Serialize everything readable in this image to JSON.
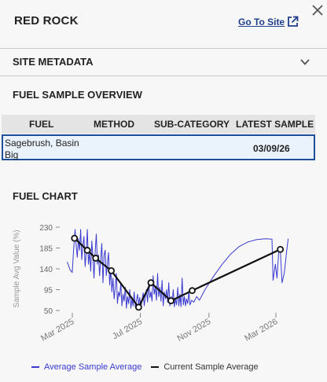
{
  "header": {
    "site_name": "RED ROCK",
    "goto_label": "Go To Site",
    "goto_icon": "external-link-icon",
    "close_icon": "close-icon"
  },
  "metadata": {
    "label": "SITE METADATA",
    "chevron_icon": "chevron-down-icon"
  },
  "overview": {
    "title": "FUEL SAMPLE OVERVIEW",
    "columns": [
      "FUEL",
      "METHOD",
      "SUB-CATEGORY",
      "LATEST SAMPLE"
    ],
    "rows": [
      {
        "fuel": "Sagebrush, Basin Big",
        "method": "",
        "sub_category": "",
        "latest_sample": "03/09/26"
      }
    ]
  },
  "chart": {
    "title": "FUEL CHART"
  },
  "chart_data": {
    "type": "line",
    "ylabel": "Sample Avg Value (%)",
    "xlabel": "",
    "ylim": [
      50,
      230
    ],
    "yticks": [
      50,
      95,
      140,
      185,
      230
    ],
    "xticks": [
      "Mar 2025",
      "Jul 2025",
      "Nov 2025",
      "Mar 2026"
    ],
    "x_tick_dates": [
      "2025-03-01",
      "2025-07-01",
      "2025-11-01",
      "2026-03-01"
    ],
    "xlim": [
      "2025-02-15",
      "2026-03-25"
    ],
    "grid": false,
    "legend_position": "bottom",
    "series": [
      {
        "name": "Average Sample Average",
        "color": "#3a3ad0",
        "style": "thin-line",
        "points": [
          [
            "2025-02-20",
            155
          ],
          [
            "2025-02-25",
            138
          ],
          [
            "2025-03-01",
            132
          ],
          [
            "2025-03-03",
            175
          ],
          [
            "2025-03-06",
            225
          ],
          [
            "2025-03-08",
            190
          ],
          [
            "2025-03-10",
            165
          ],
          [
            "2025-03-12",
            205
          ],
          [
            "2025-03-14",
            180
          ],
          [
            "2025-03-16",
            225
          ],
          [
            "2025-03-18",
            160
          ],
          [
            "2025-03-20",
            190
          ],
          [
            "2025-03-22",
            210
          ],
          [
            "2025-03-24",
            145
          ],
          [
            "2025-03-26",
            175
          ],
          [
            "2025-03-28",
            225
          ],
          [
            "2025-03-30",
            150
          ],
          [
            "2025-04-01",
            175
          ],
          [
            "2025-04-03",
            135
          ],
          [
            "2025-04-05",
            200
          ],
          [
            "2025-04-07",
            165
          ],
          [
            "2025-04-09",
            120
          ],
          [
            "2025-04-11",
            175
          ],
          [
            "2025-04-13",
            215
          ],
          [
            "2025-04-15",
            150
          ],
          [
            "2025-04-17",
            170
          ],
          [
            "2025-04-19",
            125
          ],
          [
            "2025-04-21",
            160
          ],
          [
            "2025-04-23",
            195
          ],
          [
            "2025-04-25",
            110
          ],
          [
            "2025-04-27",
            170
          ],
          [
            "2025-04-29",
            180
          ],
          [
            "2025-05-01",
            125
          ],
          [
            "2025-05-03",
            150
          ],
          [
            "2025-05-05",
            175
          ],
          [
            "2025-05-07",
            105
          ],
          [
            "2025-05-09",
            140
          ],
          [
            "2025-05-11",
            90
          ],
          [
            "2025-05-13",
            120
          ],
          [
            "2025-05-15",
            75
          ],
          [
            "2025-05-17",
            100
          ],
          [
            "2025-05-19",
            130
          ],
          [
            "2025-05-21",
            65
          ],
          [
            "2025-05-23",
            90
          ],
          [
            "2025-05-25",
            80
          ],
          [
            "2025-05-27",
            110
          ],
          [
            "2025-05-29",
            60
          ],
          [
            "2025-05-31",
            85
          ],
          [
            "2025-06-02",
            70
          ],
          [
            "2025-06-04",
            100
          ],
          [
            "2025-06-06",
            55
          ],
          [
            "2025-06-08",
            80
          ],
          [
            "2025-06-10",
            65
          ],
          [
            "2025-06-12",
            95
          ],
          [
            "2025-06-14",
            55
          ],
          [
            "2025-06-16",
            75
          ],
          [
            "2025-06-18",
            60
          ],
          [
            "2025-06-20",
            90
          ],
          [
            "2025-06-22",
            58
          ],
          [
            "2025-06-24",
            70
          ],
          [
            "2025-06-26",
            85
          ],
          [
            "2025-06-28",
            62
          ],
          [
            "2025-06-30",
            78
          ],
          [
            "2025-07-02",
            55
          ],
          [
            "2025-07-04",
            72
          ],
          [
            "2025-07-06",
            88
          ],
          [
            "2025-07-08",
            60
          ],
          [
            "2025-07-10",
            80
          ],
          [
            "2025-07-12",
            95
          ],
          [
            "2025-07-14",
            68
          ],
          [
            "2025-07-16",
            110
          ],
          [
            "2025-07-18",
            78
          ],
          [
            "2025-07-20",
            90
          ],
          [
            "2025-07-22",
            70
          ],
          [
            "2025-07-24",
            125
          ],
          [
            "2025-07-26",
            85
          ],
          [
            "2025-07-28",
            100
          ],
          [
            "2025-07-30",
            72
          ],
          [
            "2025-08-01",
            130
          ],
          [
            "2025-08-03",
            80
          ],
          [
            "2025-08-05",
            100
          ],
          [
            "2025-08-07",
            70
          ],
          [
            "2025-08-09",
            115
          ],
          [
            "2025-08-11",
            60
          ],
          [
            "2025-08-13",
            90
          ],
          [
            "2025-08-15",
            75
          ],
          [
            "2025-08-17",
            95
          ],
          [
            "2025-08-19",
            68
          ],
          [
            "2025-08-21",
            110
          ],
          [
            "2025-08-23",
            60
          ],
          [
            "2025-08-25",
            80
          ],
          [
            "2025-08-27",
            65
          ],
          [
            "2025-08-29",
            95
          ],
          [
            "2025-08-31",
            58
          ],
          [
            "2025-09-02",
            75
          ],
          [
            "2025-09-04",
            62
          ],
          [
            "2025-09-06",
            100
          ],
          [
            "2025-09-08",
            60
          ],
          [
            "2025-09-10",
            85
          ],
          [
            "2025-09-12",
            58
          ],
          [
            "2025-09-14",
            120
          ],
          [
            "2025-09-16",
            62
          ],
          [
            "2025-09-18",
            80
          ],
          [
            "2025-09-20",
            60
          ],
          [
            "2025-09-22",
            75
          ],
          [
            "2025-09-24",
            65
          ],
          [
            "2025-09-26",
            90
          ],
          [
            "2025-09-28",
            62
          ],
          [
            "2025-10-01",
            72
          ],
          [
            "2025-10-05",
            68
          ],
          [
            "2025-10-10",
            80
          ],
          [
            "2025-10-15",
            72
          ],
          [
            "2025-10-25",
            95
          ],
          [
            "2025-11-10",
            125
          ],
          [
            "2025-11-25",
            150
          ],
          [
            "2025-12-10",
            172
          ],
          [
            "2025-12-25",
            188
          ],
          [
            "2026-01-10",
            198
          ],
          [
            "2026-01-25",
            203
          ],
          [
            "2026-02-10",
            205
          ],
          [
            "2026-02-22",
            204
          ],
          [
            "2026-02-24",
            115
          ],
          [
            "2026-02-28",
            150
          ],
          [
            "2026-03-03",
            120
          ],
          [
            "2026-03-06",
            175
          ],
          [
            "2026-03-09",
            180
          ],
          [
            "2026-03-12",
            110
          ],
          [
            "2026-03-16",
            130
          ],
          [
            "2026-03-20",
            175
          ],
          [
            "2026-03-23",
            205
          ]
        ]
      },
      {
        "name": "Current Sample Average",
        "color": "#111111",
        "style": "thick-line-markers",
        "points": [
          [
            "2025-03-05",
            206
          ],
          [
            "2025-03-28",
            180
          ],
          [
            "2025-04-12",
            163
          ],
          [
            "2025-05-10",
            136
          ],
          [
            "2025-06-28",
            57
          ],
          [
            "2025-07-20",
            110
          ],
          [
            "2025-08-25",
            71
          ],
          [
            "2025-10-02",
            93
          ],
          [
            "2026-03-09",
            182
          ]
        ]
      }
    ]
  }
}
